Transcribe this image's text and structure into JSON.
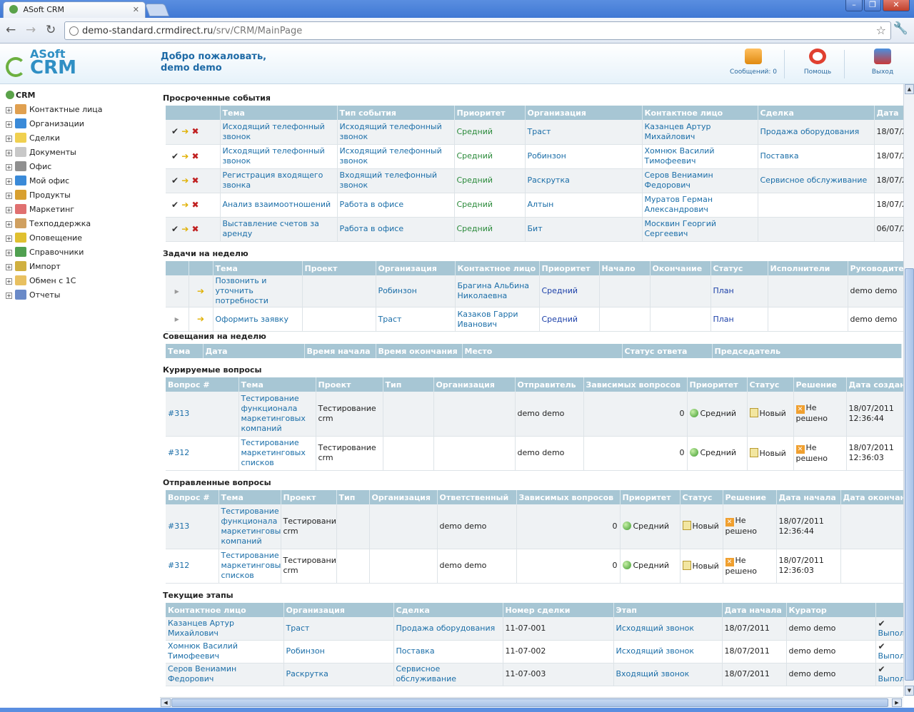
{
  "browser": {
    "tab_title": "ASoft CRM",
    "url_host": "demo-standard.crmdirect.ru",
    "url_path": "/srv/CRM/MainPage"
  },
  "header": {
    "logo_top": "ASoft",
    "logo_bottom": "CRM",
    "welcome_line1": "Добро пожаловать,",
    "welcome_line2": "demo demo",
    "messages": "Сообщений: 0",
    "help": "Помощь",
    "exit": "Выход"
  },
  "sidebar": {
    "root": "CRM",
    "items": [
      {
        "label": "Контактные лица",
        "icon": "contacts-icon",
        "color": "#e0a050"
      },
      {
        "label": "Организации",
        "icon": "organizations-icon",
        "color": "#3a8ad8"
      },
      {
        "label": "Сделки",
        "icon": "deals-icon",
        "color": "#f0d050"
      },
      {
        "label": "Документы",
        "icon": "documents-icon",
        "color": "#c8c8c8"
      },
      {
        "label": "Офис",
        "icon": "office-icon",
        "color": "#909090"
      },
      {
        "label": "Мой офис",
        "icon": "my-office-icon",
        "color": "#3a8ad8"
      },
      {
        "label": "Продукты",
        "icon": "products-icon",
        "color": "#d8a030"
      },
      {
        "label": "Маркетинг",
        "icon": "marketing-icon",
        "color": "#e07070"
      },
      {
        "label": "Техподдержка",
        "icon": "support-icon",
        "color": "#d0a060"
      },
      {
        "label": "Оповещение",
        "icon": "notification-icon",
        "color": "#e0c030"
      },
      {
        "label": "Справочники",
        "icon": "directories-icon",
        "color": "#50a050"
      },
      {
        "label": "Импорт",
        "icon": "import-icon",
        "color": "#d0b040"
      },
      {
        "label": "Обмен с 1С",
        "icon": "exchange-1c-icon",
        "color": "#e8c060"
      },
      {
        "label": "Отчеты",
        "icon": "reports-icon",
        "color": "#6a8ac8"
      }
    ]
  },
  "overdue": {
    "title": "Просроченные события",
    "cols": [
      "Тема",
      "Тип события",
      "Приоритет",
      "Организация",
      "Контактное лицо",
      "Сделка",
      "Дата"
    ],
    "rows": [
      [
        "Исходящий телефонный звонок",
        "Исходящий телефонный звонок",
        "Средний",
        "Траст",
        "Казанцев Артур Михайлович",
        "Продажа оборудования",
        "18/07/2"
      ],
      [
        "Исходящий телефонный звонок",
        "Исходящий телефонный звонок",
        "Средний",
        "Робинзон",
        "Хомнюк Василий Тимофеевич",
        "Поставка",
        "18/07/2"
      ],
      [
        "Регистрация входящего звонка",
        "Входящий телефонный звонок",
        "Средний",
        "Раскрутка",
        "Серов Вениамин Федорович",
        "Сервисное обслуживание",
        "18/07/2"
      ],
      [
        "Анализ взаимоотношений",
        "Работа в офисе",
        "Средний",
        "Алтын",
        "Муратов Герман Александрович",
        "",
        "18/07/2"
      ],
      [
        "Выставление счетов за аренду",
        "Работа в офисе",
        "Средний",
        "Бит",
        "Москвин Георгий Сергеевич",
        "",
        "06/07/2"
      ]
    ]
  },
  "tasks": {
    "title": "Задачи на неделю",
    "cols": [
      "Тема",
      "Проект",
      "Организация",
      "Контактное лицо",
      "Приоритет",
      "Начало",
      "Окончание",
      "Статус",
      "Исполнители",
      "Руководител"
    ],
    "rows": [
      [
        "Позвонить и уточнить потребности",
        "",
        "Робинзон",
        "Брагина Альбина Николаевна",
        "Средний",
        "",
        "",
        "План",
        "",
        "demo demo"
      ],
      [
        "Оформить заявку",
        "",
        "Траст",
        "Казаков Гарри Иванович",
        "Средний",
        "",
        "",
        "План",
        "",
        "demo demo"
      ]
    ]
  },
  "meetings": {
    "title": "Совещания на неделю",
    "cols": [
      "Тема",
      "Дата",
      "Время начала",
      "Время окончания",
      "Место",
      "Статус ответа",
      "Председатель"
    ]
  },
  "supervised": {
    "title": "Курируемые вопросы",
    "cols": [
      "Вопрос #",
      "Тема",
      "Проект",
      "Тип",
      "Организация",
      "Отправитель",
      "Зависимых вопросов",
      "Приоритет",
      "Статус",
      "Решение",
      "Дата создани"
    ],
    "rows": [
      [
        "#313",
        "Тестирование функционала маркетинговых компаний",
        "Тестирование crm",
        "",
        "",
        "demo demo",
        "0",
        "Средний",
        "Новый",
        "Не решено",
        "18/07/2011 12:36:44"
      ],
      [
        "#312",
        "Тестирование маркетинговых списков",
        "Тестирование crm",
        "",
        "",
        "demo demo",
        "0",
        "Средний",
        "Новый",
        "Не решено",
        "18/07/2011 12:36:03"
      ]
    ]
  },
  "sent": {
    "title": "Отправленные вопросы",
    "cols": [
      "Вопрос #",
      "Тема",
      "Проект",
      "Тип",
      "Организация",
      "Ответственный",
      "Зависимых вопросов",
      "Приоритет",
      "Статус",
      "Решение",
      "Дата начала",
      "Дата окончани"
    ],
    "rows": [
      [
        "#313",
        "Тестирование функционала маркетинговых компаний",
        "Тестирование crm",
        "",
        "",
        "demo demo",
        "0",
        "Средний",
        "Новый",
        "Не решено",
        "18/07/2011 12:36:44",
        ""
      ],
      [
        "#312",
        "Тестирование маркетинговых списков",
        "Тестирование crm",
        "",
        "",
        "demo demo",
        "0",
        "Средний",
        "Новый",
        "Не решено",
        "18/07/2011 12:36:03",
        ""
      ]
    ]
  },
  "stages": {
    "title": "Текущие этапы",
    "cols": [
      "Контактное лицо",
      "Организация",
      "Сделка",
      "Номер сделки",
      "Этап",
      "Дата начала",
      "Куратор",
      ""
    ],
    "action": "Выпол",
    "rows": [
      [
        "Казанцев Артур Михайлович",
        "Траст",
        "Продажа оборудования",
        "11-07-001",
        "Исходящий звонок",
        "18/07/2011",
        "demo demo"
      ],
      [
        "Хомнюк Василий Тимофеевич",
        "Робинзон",
        "Поставка",
        "11-07-002",
        "Исходящий звонок",
        "18/07/2011",
        "demo demo"
      ],
      [
        "Серов Вениамин Федорович",
        "Раскрутка",
        "Сервисное обслуживание",
        "11-07-003",
        "Входящий звонок",
        "18/07/2011",
        "demo demo"
      ]
    ]
  }
}
